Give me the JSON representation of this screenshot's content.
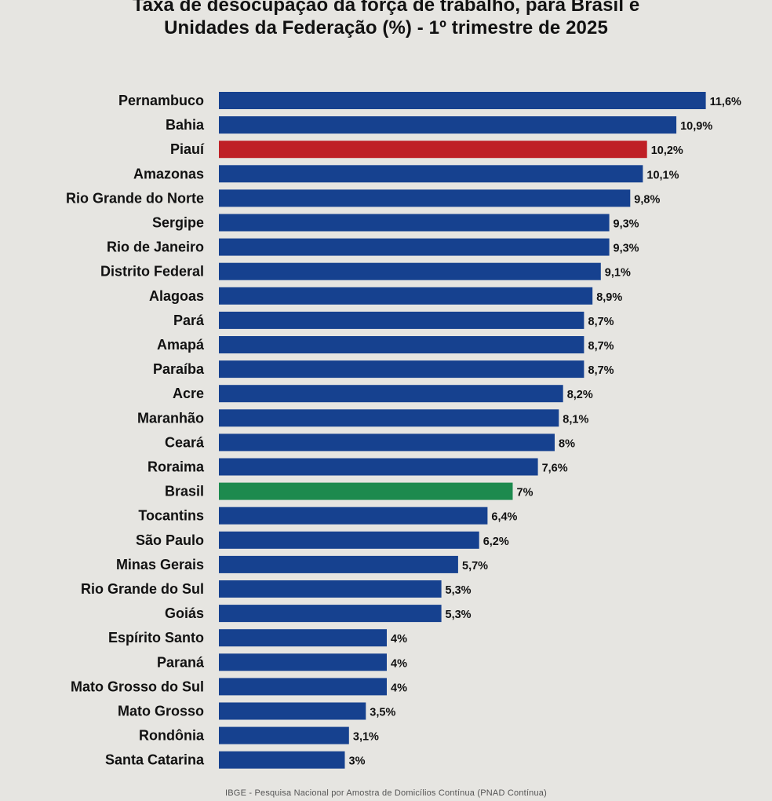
{
  "title_line1": "Taxa de desocupação da força de trabalho, para Brasil e",
  "title_line2": "Unidades da Federação (%) - 1º trimestre de 2025",
  "source": "IBGE - Pesquisa Nacional por Amostra de Domicílios Contínua (PNAD Contínua)",
  "colors": {
    "default": "#16418f",
    "highlight": "#bf2026",
    "brasil": "#1d8a4e"
  },
  "chart_data": {
    "type": "bar",
    "orientation": "horizontal",
    "title": "Taxa de desocupação da força de trabalho, para Brasil e Unidades da Federação (%) - 1º trimestre de 2025",
    "categories": [
      "Pernambuco",
      "Bahia",
      "Piauí",
      "Amazonas",
      "Rio Grande do Norte",
      "Sergipe",
      "Rio de Janeiro",
      "Distrito Federal",
      "Alagoas",
      "Pará",
      "Amapá",
      "Paraíba",
      "Acre",
      "Maranhão",
      "Ceará",
      "Roraima",
      "Brasil",
      "Tocantins",
      "São Paulo",
      "Minas Gerais",
      "Rio Grande do Sul",
      "Goiás",
      "Espírito Santo",
      "Paraná",
      "Mato Grosso do Sul",
      "Mato Grosso",
      "Rondônia",
      "Santa Catarina"
    ],
    "values": [
      11.6,
      10.9,
      10.2,
      10.1,
      9.8,
      9.3,
      9.3,
      9.1,
      8.9,
      8.7,
      8.7,
      8.7,
      8.2,
      8.1,
      8.0,
      7.6,
      7.0,
      6.4,
      6.2,
      5.7,
      5.3,
      5.3,
      4.0,
      4.0,
      4.0,
      3.5,
      3.1,
      3.0
    ],
    "value_labels": [
      "11,6%",
      "10,9%",
      "10,2%",
      "10,1%",
      "9,8%",
      "9,3%",
      "9,3%",
      "9,1%",
      "8,9%",
      "8,7%",
      "8,7%",
      "8,7%",
      "8,2%",
      "8,1%",
      "8%",
      "7,6%",
      "7%",
      "6,4%",
      "6,2%",
      "5,7%",
      "5,3%",
      "5,3%",
      "4%",
      "4%",
      "4%",
      "3,5%",
      "3,1%",
      "3%"
    ],
    "highlighted": {
      "Piauí": "highlight",
      "Brasil": "brasil"
    },
    "grid": false,
    "legend": "none"
  }
}
